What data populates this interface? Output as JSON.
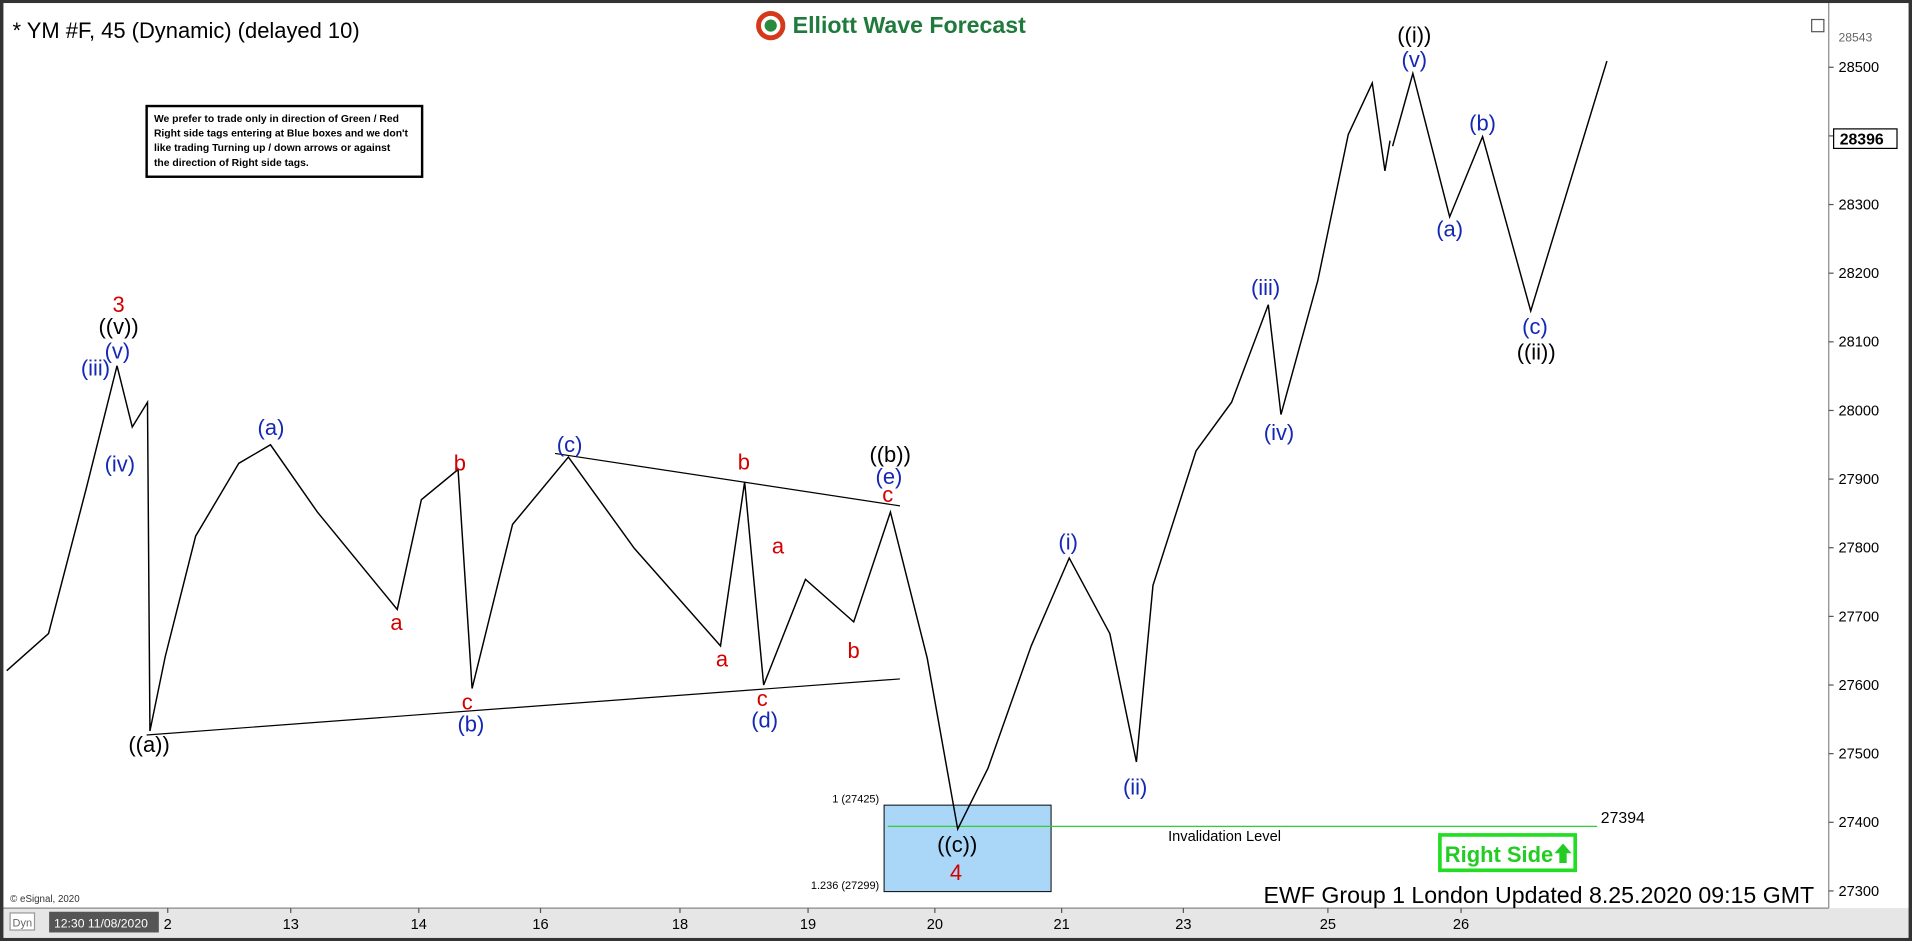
{
  "chart_data": {
    "type": "line",
    "title": "* YM #F, 45 (Dynamic) (delayed 10)",
    "logo": "Elliott Wave Forecast",
    "note_lines": [
      "We prefer to trade only in direction of Green / Red",
      "Right side tags entering at Blue boxes and we don't",
      "like trading Turning up / down arrows or against",
      "the direction of Right side tags."
    ],
    "xlim": [
      -1.32,
      13.1
    ],
    "xticks": [
      {
        "value": 0,
        "label": "2"
      },
      {
        "value": 0.97,
        "label": "13"
      },
      {
        "value": 1.98,
        "label": "14"
      },
      {
        "value": 2.94,
        "label": "16"
      },
      {
        "value": 4.04,
        "label": "18"
      },
      {
        "value": 5.05,
        "label": "19"
      },
      {
        "value": 6.05,
        "label": "20"
      },
      {
        "value": 7.05,
        "label": "21"
      },
      {
        "value": 8.01,
        "label": "23"
      },
      {
        "value": 9.15,
        "label": "25"
      },
      {
        "value": 10.2,
        "label": "26"
      }
    ],
    "ylim": [
      27275,
      28598
    ],
    "yticks": [
      27300,
      27400,
      27500,
      27600,
      27700,
      27800,
      27900,
      28000,
      28100,
      28200,
      28300,
      28400,
      28500
    ],
    "series": [
      {
        "color": "#000000",
        "x": [
          -1.27,
          -0.94,
          -0.64,
          -0.4,
          -0.28,
          -0.16,
          -0.14,
          -0.02,
          0.22,
          0.56,
          0.81,
          1.18,
          1.81,
          2.0,
          2.29,
          2.4,
          2.72,
          3.16,
          3.68,
          4.36,
          4.55,
          4.7,
          5.03,
          5.41,
          5.7,
          5.99,
          6.23,
          6.47,
          6.81,
          7.11,
          7.43,
          7.64,
          7.77,
          8.11,
          8.39,
          8.68,
          8.78,
          9.07,
          9.31,
          9.5,
          9.6,
          9.64
        ],
        "values": [
          27621,
          27675,
          27888,
          28065,
          27976,
          28012,
          27533,
          27641,
          27817,
          27923,
          27950,
          27852,
          27710,
          27870,
          27914,
          27595,
          27834,
          27932,
          27799,
          27657,
          27896,
          27600,
          27754,
          27692,
          27852,
          27639,
          27390,
          27479,
          27657,
          27785,
          27675,
          27488,
          27745,
          27941,
          28012,
          28154,
          27994,
          28189,
          28402,
          28477,
          28349,
          28393
        ]
      },
      {
        "color": "#000000",
        "x": [
          9.66,
          9.82,
          10.11,
          10.37,
          10.75,
          11.35
        ],
        "values": [
          28385,
          28491,
          28282,
          28399,
          28145,
          28509
        ]
      }
    ],
    "high_price": 28543,
    "last_price": 28396,
    "box": {
      "top": 27425,
      "bottom": 27299,
      "top_label": "1 (27425)",
      "bottom_label": "1.236 (27299)",
      "color": "#aad6f7"
    },
    "invalidation_level": 27394,
    "invalidation_label": "Invalidation Level",
    "right_side_label": "Right Side",
    "wave_labels": [
      {
        "text": "3",
        "color": "#d40000"
      },
      {
        "text": "((v))",
        "color": "#000000"
      },
      {
        "text": "(v)",
        "color": "#1428b4"
      },
      {
        "text": "(iii)",
        "color": "#1428b4"
      },
      {
        "text": "(iv)",
        "color": "#1428b4"
      },
      {
        "text": "((a))",
        "color": "#000000"
      },
      {
        "text": "(a)",
        "color": "#1428b4"
      },
      {
        "text": "a",
        "color": "#d40000"
      },
      {
        "text": "b",
        "color": "#d40000"
      },
      {
        "text": "c",
        "color": "#d40000"
      },
      {
        "text": "(b)",
        "color": "#1428b4"
      },
      {
        "text": "(c)",
        "color": "#1428b4"
      },
      {
        "text": "b",
        "color": "#d40000"
      },
      {
        "text": "a",
        "color": "#d40000"
      },
      {
        "text": "a",
        "color": "#d40000"
      },
      {
        "text": "c",
        "color": "#d40000"
      },
      {
        "text": "(d)",
        "color": "#1428b4"
      },
      {
        "text": "b",
        "color": "#d40000"
      },
      {
        "text": "((b))",
        "color": "#000000"
      },
      {
        "text": "(e)",
        "color": "#1428b4"
      },
      {
        "text": "c",
        "color": "#d40000"
      },
      {
        "text": "((c))",
        "color": "#000000"
      },
      {
        "text": "4",
        "color": "#d40000"
      },
      {
        "text": "(i)",
        "color": "#1428b4"
      },
      {
        "text": "(ii)",
        "color": "#1428b4"
      },
      {
        "text": "(iii)",
        "color": "#1428b4"
      },
      {
        "text": "(iv)",
        "color": "#1428b4"
      },
      {
        "text": "((i))",
        "color": "#000000"
      },
      {
        "text": "(v)",
        "color": "#1428b4"
      },
      {
        "text": "(a)",
        "color": "#1428b4"
      },
      {
        "text": "(b)",
        "color": "#1428b4"
      },
      {
        "text": "(c)",
        "color": "#1428b4"
      },
      {
        "text": "((ii))",
        "color": "#000000"
      }
    ],
    "copyright": "© eSignal, 2020",
    "mode_label": "Dyn",
    "date_stamp": "12:30 11/08/2020",
    "footer": "EWF Group 1 London Updated 8.25.2020 09:15 GMT"
  }
}
